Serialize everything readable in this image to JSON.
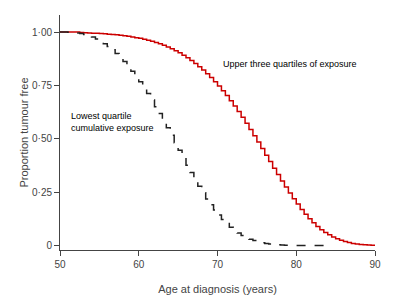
{
  "chart_data": {
    "type": "step",
    "xlabel": "Age at diagnosis (years)",
    "ylabel": "Proportion tumour free",
    "xlim": [
      50,
      90
    ],
    "ylim": [
      -0.02,
      1.08
    ],
    "xticks": [
      50,
      60,
      70,
      80,
      90
    ],
    "yticks": [
      0,
      {
        "value": 0.25,
        "label": "0·25"
      },
      {
        "value": 0.5,
        "label": "0·50"
      },
      {
        "value": 0.75,
        "label": "0·75"
      },
      {
        "value": 1.0,
        "label": "1·00"
      }
    ],
    "grid": false,
    "annotations": [
      "Upper three quartiles of exposure",
      "Lowest quartile\ncumulative exposure"
    ],
    "series": [
      {
        "color": "#cc0000",
        "line_style": "solid",
        "x": [
          50.0,
          50.5,
          51.0,
          51.5,
          52.0,
          52.5,
          53.0,
          53.5,
          54.0,
          54.5,
          55.0,
          55.5,
          56.0,
          56.5,
          57.0,
          57.5,
          58.0,
          58.5,
          59.0,
          59.5,
          60.0,
          60.5,
          61.0,
          61.5,
          62.0,
          62.5,
          63.0,
          63.5,
          64.0,
          64.5,
          65.0,
          65.5,
          66.0,
          66.5,
          67.0,
          67.5,
          68.0,
          68.5,
          69.0,
          69.5,
          70.0,
          70.5,
          71.0,
          71.5,
          72.0,
          72.5,
          73.0,
          73.5,
          74.0,
          74.5,
          75.0,
          75.5,
          76.0,
          76.5,
          77.0,
          77.5,
          78.0,
          78.5,
          79.0,
          79.5,
          80.0,
          80.5,
          81.0,
          81.5,
          82.0,
          82.5,
          83.0,
          83.5,
          84.0,
          84.5,
          85.0,
          85.5,
          86.0,
          86.5,
          87.0,
          87.5,
          88.0,
          88.5,
          89.0,
          89.5,
          90.0
        ],
        "values": [
          1.0,
          1.0,
          1.0,
          1.0,
          1.0,
          0.998,
          0.997,
          0.996,
          0.995,
          0.994,
          0.993,
          0.992,
          0.99,
          0.989,
          0.987,
          0.985,
          0.983,
          0.98,
          0.977,
          0.974,
          0.971,
          0.967,
          0.962,
          0.957,
          0.951,
          0.945,
          0.938,
          0.93,
          0.922,
          0.913,
          0.903,
          0.892,
          0.88,
          0.867,
          0.853,
          0.838,
          0.822,
          0.805,
          0.787,
          0.768,
          0.748,
          0.726,
          0.703,
          0.679,
          0.654,
          0.628,
          0.601,
          0.573,
          0.544,
          0.515,
          0.485,
          0.455,
          0.424,
          0.394,
          0.363,
          0.333,
          0.303,
          0.275,
          0.247,
          0.22,
          0.195,
          0.17,
          0.147,
          0.126,
          0.107,
          0.09,
          0.075,
          0.062,
          0.051,
          0.041,
          0.033,
          0.026,
          0.02,
          0.015,
          0.011,
          0.008,
          0.006,
          0.004,
          0.003,
          0.002,
          0.001
        ]
      },
      {
        "color": "#222222",
        "line_style": "dashed",
        "x": [
          50.0,
          50.5,
          51.0,
          51.5,
          52.0,
          52.5,
          53.0,
          53.5,
          54.0,
          54.5,
          55.0,
          55.5,
          56.0,
          56.5,
          57.0,
          57.5,
          58.0,
          58.5,
          59.0,
          59.5,
          60.0,
          60.5,
          61.0,
          61.5,
          62.0,
          62.5,
          63.0,
          63.5,
          64.0,
          64.5,
          65.0,
          65.5,
          66.0,
          66.5,
          67.0,
          67.5,
          68.0,
          68.5,
          69.0,
          69.5,
          70.0,
          70.5,
          71.0,
          71.5,
          72.0,
          72.5,
          73.0,
          73.5,
          74.0,
          74.5,
          75.0,
          75.5,
          76.0,
          76.5,
          77.0,
          77.5,
          78.0,
          78.5,
          79.0,
          79.5,
          80.0,
          80.5,
          81.0,
          81.5,
          82.0,
          82.5,
          83.0,
          83.5,
          84.0
        ],
        "values": [
          1.0,
          1.0,
          0.999,
          0.998,
          0.996,
          0.993,
          0.989,
          0.984,
          0.977,
          0.968,
          0.958,
          0.946,
          0.932,
          0.917,
          0.9,
          0.882,
          0.862,
          0.84,
          0.817,
          0.793,
          0.767,
          0.74,
          0.712,
          0.682,
          0.651,
          0.619,
          0.586,
          0.552,
          0.517,
          0.482,
          0.447,
          0.412,
          0.377,
          0.343,
          0.31,
          0.278,
          0.248,
          0.219,
          0.192,
          0.167,
          0.144,
          0.123,
          0.104,
          0.087,
          0.072,
          0.059,
          0.048,
          0.038,
          0.03,
          0.024,
          0.018,
          0.014,
          0.01,
          0.008,
          0.006,
          0.004,
          0.003,
          0.002,
          0.002,
          0.001,
          0.001,
          0.001,
          0.001,
          0.001,
          0.001,
          0.001,
          0.001,
          0.001,
          0.001
        ]
      }
    ]
  }
}
